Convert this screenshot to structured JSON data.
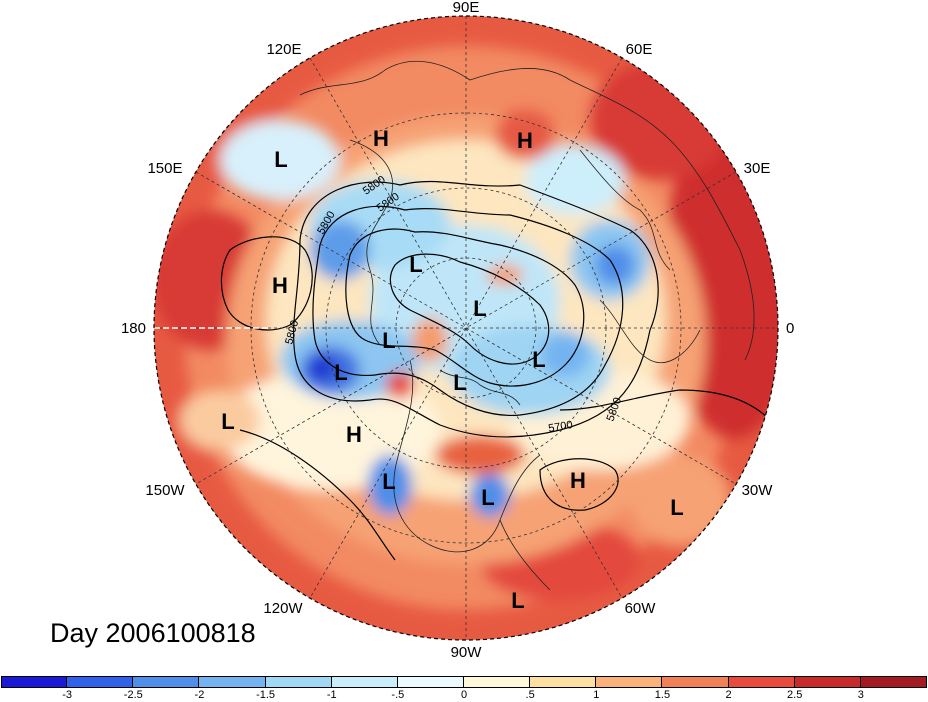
{
  "title": "Day 2006100818",
  "longitude_labels": [
    "90E",
    "60E",
    "30E",
    "0",
    "30W",
    "60W",
    "90W",
    "120W",
    "150W",
    "180",
    "150E",
    "120E"
  ],
  "contour_labels": [
    "5800",
    "5800",
    "5800",
    "5800",
    "5700",
    "5800"
  ],
  "pressure_centers": [
    {
      "type": "H",
      "region": "central-asia"
    },
    {
      "type": "H",
      "region": "siberia"
    },
    {
      "type": "L",
      "region": "east-asia"
    },
    {
      "type": "H",
      "region": "north-pacific"
    },
    {
      "type": "L",
      "region": "bering-sea"
    },
    {
      "type": "L",
      "region": "gulf-of-alaska"
    },
    {
      "type": "L",
      "region": "arctic-1"
    },
    {
      "type": "L",
      "region": "arctic-2"
    },
    {
      "type": "L",
      "region": "arctic-3"
    },
    {
      "type": "L",
      "region": "arctic-4"
    },
    {
      "type": "L",
      "region": "arctic-5"
    },
    {
      "type": "L",
      "region": "subtropical-pacific"
    },
    {
      "type": "H",
      "region": "western-canada"
    },
    {
      "type": "L",
      "region": "california"
    },
    {
      "type": "L",
      "region": "florida"
    },
    {
      "type": "H",
      "region": "central-atlantic"
    },
    {
      "type": "L",
      "region": "subtropical-atlantic"
    },
    {
      "type": "L",
      "region": "central-america"
    }
  ],
  "colorbar": {
    "ticks": [
      "-3",
      "-2.5",
      "-2",
      "-1.5",
      "-1",
      "-.5",
      "0",
      ".5",
      "1",
      "1.5",
      "2",
      "2.5",
      "3"
    ],
    "colors": [
      "#1a1ad6",
      "#2f62e8",
      "#4f8ee9",
      "#73b4f0",
      "#9fd9f6",
      "#c8eefb",
      "#eafaff",
      "#fff8d8",
      "#fde0a0",
      "#f9b27a",
      "#f28056",
      "#e84a3e",
      "#c82a2c",
      "#a51a22"
    ]
  },
  "projection": {
    "type": "north-polar-stereographic",
    "dateline": "180"
  }
}
